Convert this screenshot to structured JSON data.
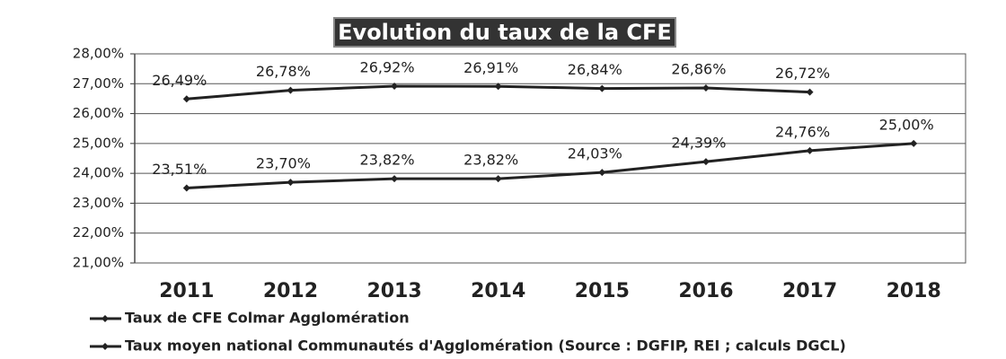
{
  "chart_data": {
    "type": "line",
    "title": "Evolution du taux de la CFE",
    "categories": [
      "2011",
      "2012",
      "2013",
      "2014",
      "2015",
      "2016",
      "2017",
      "2018"
    ],
    "series": [
      {
        "name": "Taux de CFE Colmar Agglomération",
        "color": "#222222",
        "values": [
          23.51,
          23.7,
          23.82,
          23.82,
          24.03,
          24.39,
          24.76,
          25.0
        ],
        "value_labels": [
          "23,51%",
          "23,70%",
          "23,82%",
          "23,82%",
          "24,03%",
          "24,39%",
          "24,76%",
          "25,00%"
        ]
      },
      {
        "name": "Taux moyen national Communautés d'Agglomération (Source : DGFIP, REI ; calculs DGCL)",
        "color": "#222222",
        "values": [
          26.49,
          26.78,
          26.92,
          26.91,
          26.84,
          26.86,
          26.72,
          null
        ],
        "value_labels": [
          "26,49%",
          "26,78%",
          "26,92%",
          "26,91%",
          "26,84%",
          "26,86%",
          "26,72%",
          null
        ]
      }
    ],
    "ylim": [
      21,
      28
    ],
    "yticks": [
      {
        "value": 21,
        "label": "21,00%"
      },
      {
        "value": 22,
        "label": "22,00%"
      },
      {
        "value": 23,
        "label": "23,00%"
      },
      {
        "value": 24,
        "label": "24,00%"
      },
      {
        "value": 25,
        "label": "25,00%"
      },
      {
        "value": 26,
        "label": "26,00%"
      },
      {
        "value": 27,
        "label": "27,00%"
      },
      {
        "value": 28,
        "label": "28,00%"
      }
    ],
    "grid": true,
    "legend": "bottom"
  }
}
